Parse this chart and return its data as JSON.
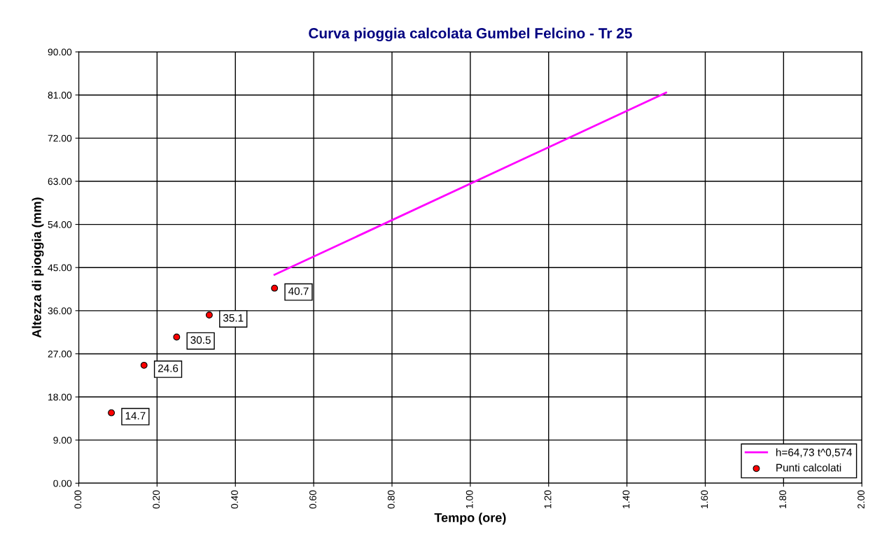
{
  "chart_data": {
    "type": "scatter",
    "title": "Curva pioggia calcolata Gumbel Felcino - Tr 25",
    "xlabel": "Tempo (ore)",
    "ylabel": "Altezza di pioggia (mm)",
    "series": [
      {
        "name": "h=64,73 t^0,574",
        "type": "line",
        "color": "#ff00ff",
        "x": [
          0.5,
          1.5
        ],
        "values": [
          43.5,
          81.5
        ],
        "marker": "none"
      },
      {
        "name": "Punti calcolati",
        "color": "#ff0000",
        "x": [
          0.0833,
          0.1667,
          0.25,
          0.3333,
          0.5
        ],
        "values": [
          14.7,
          24.6,
          30.5,
          35.1,
          40.7
        ],
        "marker": "circle",
        "value_labels": [
          "14.7",
          "24.6",
          "30.5",
          "35.1",
          "40.7"
        ]
      }
    ],
    "xlim": [
      0,
      2
    ],
    "ylim": [
      0,
      90
    ],
    "xticks": [
      {
        "value": 0,
        "label": "0.00"
      },
      {
        "value": 0.2,
        "label": "0.20"
      },
      {
        "value": 0.4,
        "label": "0.40"
      },
      {
        "value": 0.6,
        "label": "0.60"
      },
      {
        "value": 0.8,
        "label": "0.80"
      },
      {
        "value": 1.0,
        "label": "1.00"
      },
      {
        "value": 1.2,
        "label": "1.20"
      },
      {
        "value": 1.4,
        "label": "1.40"
      },
      {
        "value": 1.6,
        "label": "1.60"
      },
      {
        "value": 1.8,
        "label": "1.80"
      },
      {
        "value": 2.0,
        "label": "2.00"
      }
    ],
    "yticks": [
      {
        "value": 0,
        "label": "0.00"
      },
      {
        "value": 9,
        "label": "9.00"
      },
      {
        "value": 18,
        "label": "18.00"
      },
      {
        "value": 27,
        "label": "27.00"
      },
      {
        "value": 36,
        "label": "36.00"
      },
      {
        "value": 45,
        "label": "45.00"
      },
      {
        "value": 54,
        "label": "54.00"
      },
      {
        "value": 63,
        "label": "63.00"
      },
      {
        "value": 72,
        "label": "72.00"
      },
      {
        "value": 81,
        "label": "81.00"
      },
      {
        "value": 90,
        "label": "90.00"
      }
    ],
    "grid": true,
    "legend": "bottom right"
  }
}
